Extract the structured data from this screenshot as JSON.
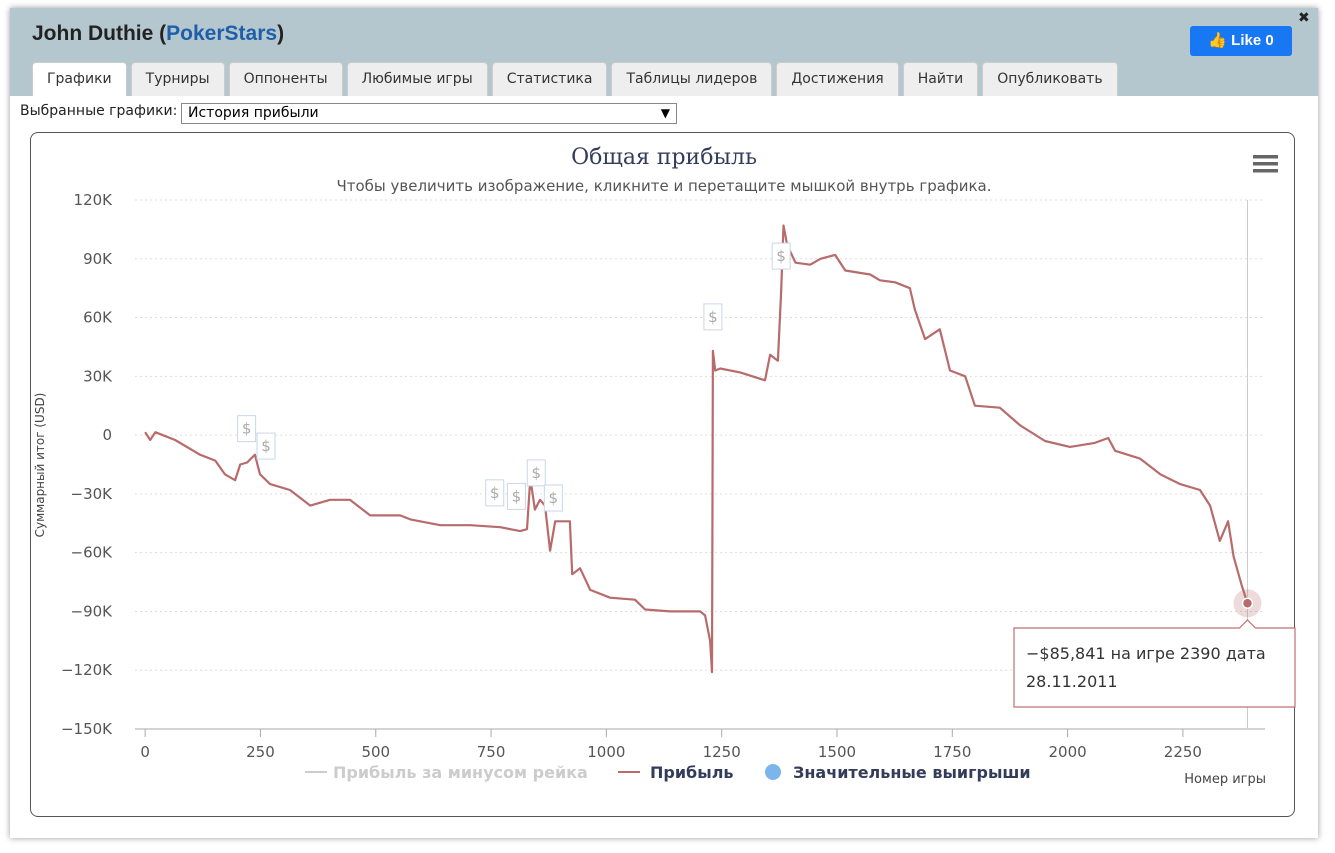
{
  "header": {
    "title_prefix": "John Duthie (",
    "title_link": "PokerStars",
    "title_suffix": ")",
    "like_label": "Like",
    "like_count": 0,
    "close": "✖"
  },
  "tabs": [
    "Графики",
    "Турниры",
    "Оппоненты",
    "Любимые игры",
    "Статистика",
    "Таблицы лидеров",
    "Достижения",
    "Найти",
    "Опубликовать"
  ],
  "selector": {
    "label": "Выбранные графики:",
    "value": "История прибыли",
    "arrow": "▼"
  },
  "chart_data": {
    "type": "line",
    "title": "Общая прибыль",
    "subtitle": "Чтобы увеличить изображение, кликните и перетащите мышкой внутрь графика.",
    "y_label": "Суммарный итог (USD)",
    "x_label": "Номер игры",
    "xlim": [
      -22,
      2428
    ],
    "xticks": [
      0,
      250,
      500,
      750,
      1000,
      1250,
      1500,
      1750,
      2000,
      2250
    ],
    "ylim": [
      -150000,
      120000
    ],
    "yticks": [
      {
        "value": 120000,
        "label": "120K"
      },
      {
        "value": 90000,
        "label": "90K"
      },
      {
        "value": 60000,
        "label": "60K"
      },
      {
        "value": 30000,
        "label": "30K"
      },
      0,
      {
        "value": -30000,
        "label": "−30K"
      },
      {
        "value": -60000,
        "label": "−60K"
      },
      {
        "value": -90000,
        "label": "−90K"
      },
      {
        "value": -120000,
        "label": "−120K"
      },
      {
        "value": -150000,
        "label": "−150K"
      }
    ],
    "grid": true,
    "x": [
      0,
      11,
      22,
      65,
      119,
      152,
      173,
      195,
      206,
      221,
      238,
      249,
      271,
      314,
      358,
      401,
      444,
      488,
      553,
      575,
      640,
      705,
      770,
      813,
      828,
      835,
      845,
      856,
      867,
      878,
      889,
      921,
      926,
      943,
      965,
      1008,
      1062,
      1084,
      1138,
      1203,
      1214,
      1225,
      1229,
      1231,
      1236,
      1247,
      1290,
      1344,
      1355,
      1372,
      1379,
      1384,
      1392,
      1410,
      1442,
      1464,
      1496,
      1518,
      1572,
      1593,
      1626,
      1658,
      1669,
      1691,
      1723,
      1745,
      1778,
      1799,
      1853,
      1897,
      1951,
      2005,
      2059,
      2088,
      2103,
      2157,
      2201,
      2244,
      2287,
      2309,
      2330,
      2348,
      2360,
      2378,
      2390
    ],
    "series": [
      {
        "name": "Прибыль",
        "color": "#b86b6b",
        "values": [
          1500,
          -2500,
          1500,
          -2500,
          -10000,
          -13000,
          -20000,
          -23000,
          -15000,
          -14000,
          -10000,
          -20000,
          -25000,
          -28000,
          -36000,
          -33000,
          -33000,
          -41000,
          -41000,
          -43000,
          -46000,
          -46000,
          -47000,
          -49000,
          -48000,
          -22000,
          -38000,
          -33000,
          -36000,
          -59000,
          -44000,
          -44000,
          -71000,
          -68000,
          -79000,
          -83000,
          -84000,
          -89000,
          -90000,
          -90000,
          -92000,
          -105000,
          -121000,
          43000,
          33000,
          34000,
          32000,
          28000,
          41000,
          38000,
          74000,
          107000,
          97000,
          88000,
          87000,
          90000,
          92000,
          84000,
          82000,
          79000,
          78000,
          75000,
          64000,
          49000,
          54000,
          33000,
          30000,
          15000,
          14000,
          5000,
          -3000,
          -6000,
          -4000,
          -1500,
          -8000,
          -12000,
          -20000,
          -25000,
          -28000,
          -36000,
          -54000,
          -44000,
          -62000,
          -77000,
          -85841
        ]
      }
    ],
    "legend": [
      {
        "name": "Прибыль за минусом рейка",
        "color": "#cccccc"
      },
      {
        "name": "Прибыль",
        "color": "#b86b6b"
      },
      {
        "name": "Значительные выигрыши",
        "color": "#7cb5ec"
      }
    ],
    "flags": {
      "label": "$",
      "x": [
        220,
        262,
        758,
        805,
        848,
        885,
        1231,
        1379
      ]
    },
    "tooltip": [
      "−$85,841 на игре 2390 дата",
      "28.11.2011"
    ]
  }
}
